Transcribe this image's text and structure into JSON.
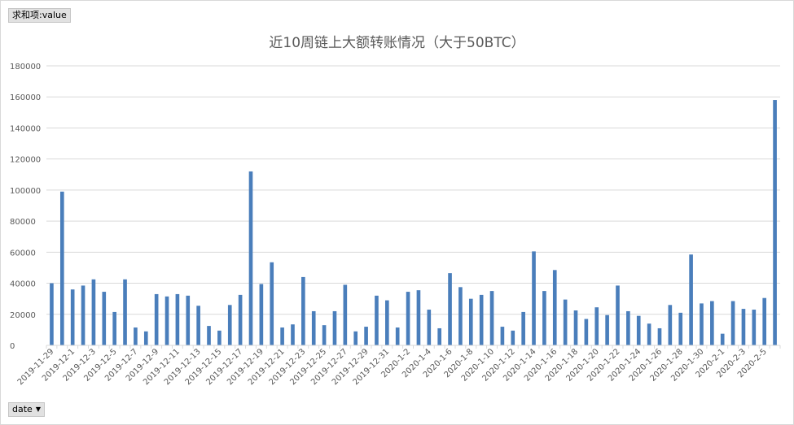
{
  "pivot": {
    "values_field": "求和项:value",
    "axis_field": "date"
  },
  "colors": {
    "bar": "#4a7ebb",
    "grid": "#d9d9d9",
    "text": "#595959"
  },
  "chart_data": {
    "type": "bar",
    "title": "近10周链上大额转账情况（大于50BTC）",
    "xlabel": "",
    "ylabel": "",
    "ylim": [
      0,
      180000
    ],
    "yticks": [
      0,
      20000,
      40000,
      60000,
      80000,
      100000,
      120000,
      140000,
      160000,
      180000
    ],
    "grid": true,
    "legend": "none",
    "categories": [
      "2019-11-29",
      "2019-11-30",
      "2019-12-1",
      "2019-12-2",
      "2019-12-3",
      "2019-12-4",
      "2019-12-5",
      "2019-12-6",
      "2019-12-7",
      "2019-12-8",
      "2019-12-9",
      "2019-12-10",
      "2019-12-11",
      "2019-12-12",
      "2019-12-13",
      "2019-12-14",
      "2019-12-15",
      "2019-12-16",
      "2019-12-17",
      "2019-12-18",
      "2019-12-19",
      "2019-12-20",
      "2019-12-21",
      "2019-12-22",
      "2019-12-23",
      "2019-12-24",
      "2019-12-25",
      "2019-12-26",
      "2019-12-27",
      "2019-12-28",
      "2019-12-29",
      "2019-12-30",
      "2019-12-31",
      "2020-1-1",
      "2020-1-2",
      "2020-1-3",
      "2020-1-4",
      "2020-1-5",
      "2020-1-6",
      "2020-1-7",
      "2020-1-8",
      "2020-1-9",
      "2020-1-10",
      "2020-1-11",
      "2020-1-12",
      "2020-1-13",
      "2020-1-14",
      "2020-1-15",
      "2020-1-16",
      "2020-1-17",
      "2020-1-18",
      "2020-1-19",
      "2020-1-20",
      "2020-1-21",
      "2020-1-22",
      "2020-1-23",
      "2020-1-24",
      "2020-1-25",
      "2020-1-26",
      "2020-1-27",
      "2020-1-28",
      "2020-1-29",
      "2020-1-30",
      "2020-1-31",
      "2020-2-1",
      "2020-2-2",
      "2020-2-3",
      "2020-2-4",
      "2020-2-5",
      "2020-2-6"
    ],
    "values": [
      40000,
      99000,
      36000,
      38500,
      42500,
      34500,
      21500,
      42500,
      11500,
      9000,
      33000,
      31500,
      33000,
      32000,
      25500,
      12500,
      9500,
      26000,
      32500,
      112000,
      39500,
      53500,
      11500,
      13500,
      44000,
      22000,
      13000,
      22000,
      39000,
      9000,
      12000,
      32000,
      29000,
      11500,
      34500,
      35500,
      23000,
      11000,
      46500,
      37500,
      30000,
      32500,
      35000,
      12000,
      9500,
      21500,
      60500,
      35000,
      48500,
      29500,
      22500,
      17000,
      24500,
      19500,
      38500,
      22000,
      19000,
      14000,
      11000,
      26000,
      21000,
      58500,
      27000,
      28500,
      7500,
      28500,
      23500,
      23000,
      30500,
      158000
    ]
  }
}
